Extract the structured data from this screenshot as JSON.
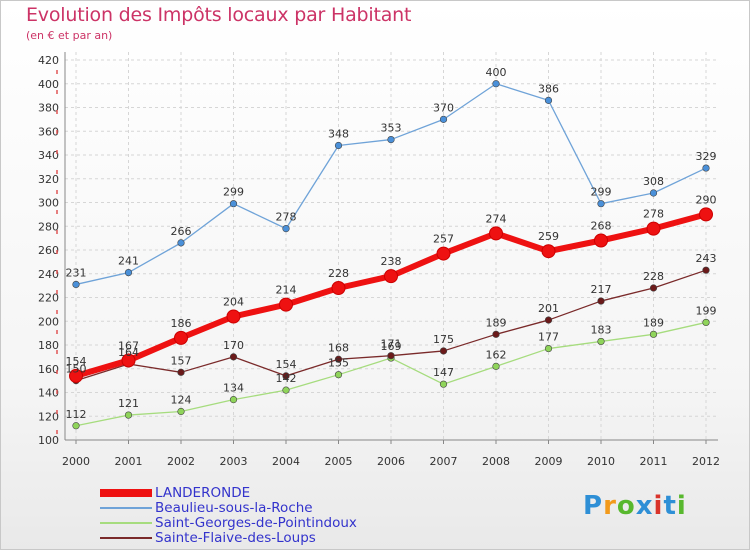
{
  "header": {
    "title": "Evolution des Impôts locaux par Habitant",
    "subtitle": "(en € et par an)"
  },
  "logo": {
    "text": "Proxiti",
    "colors": [
      "#2e8fd6",
      "#f29a1b",
      "#58b82e",
      "#2e8fd6",
      "#d9342b",
      "#2e8fd6",
      "#58b82e"
    ]
  },
  "chart_data": {
    "type": "line",
    "title": "Evolution des Impôts locaux par Habitant",
    "subtitle": "(en € et par an)",
    "x": [
      "2000",
      "2001",
      "2002",
      "2003",
      "2004",
      "2005",
      "2006",
      "2007",
      "2008",
      "2009",
      "2010",
      "2011",
      "2012"
    ],
    "ylim": [
      100,
      420
    ],
    "yticks": [
      "100",
      "120",
      "140",
      "160",
      "180",
      "200",
      "220",
      "240",
      "260",
      "280",
      "300",
      "320",
      "340",
      "360",
      "380",
      "400",
      "420"
    ],
    "grid": true,
    "legend_position": "bottom-left",
    "series": [
      {
        "name": "LANDERONDE",
        "color": "#ee1111",
        "marker": "#ee1111",
        "emphasis": true,
        "values": [
          154,
          167,
          186,
          204,
          214,
          228,
          238,
          257,
          274,
          259,
          268,
          278,
          290
        ],
        "labels": [
          "154",
          "167",
          "186",
          "204",
          "214",
          "228",
          "238",
          "257",
          "274",
          "259",
          "268",
          "278",
          "290"
        ]
      },
      {
        "name": "Beaulieu-sous-la-Roche",
        "color": "#6fa3d8",
        "marker": "#4a90d9",
        "values": [
          231,
          241,
          266,
          299,
          278,
          348,
          353,
          370,
          400,
          386,
          299,
          308,
          329
        ],
        "labels": [
          "231",
          "241",
          "266",
          "299",
          "278",
          "348",
          "353",
          "370",
          "400",
          "386",
          "299",
          "308",
          "329"
        ]
      },
      {
        "name": "Saint-Georges-de-Pointindoux",
        "color": "#a6dc7e",
        "marker": "#8fd45a",
        "values": [
          112,
          121,
          124,
          134,
          142,
          155,
          169,
          147,
          162,
          177,
          183,
          189,
          199
        ],
        "labels": [
          "112",
          "121",
          "124",
          "134",
          "142",
          "155",
          "169",
          "147",
          "162",
          "177",
          "183",
          "189",
          "199"
        ]
      },
      {
        "name": "Sainte-Flaive-des-Loups",
        "color": "#7a2a2a",
        "marker": "#6b1a1a",
        "values": [
          150,
          164,
          157,
          170,
          154,
          168,
          171,
          175,
          189,
          201,
          217,
          228,
          243
        ],
        "labels": [
          "150",
          "164",
          "157",
          "170",
          "154",
          "168",
          "171",
          "175",
          "189",
          "201",
          "217",
          "228",
          "243"
        ]
      }
    ]
  }
}
